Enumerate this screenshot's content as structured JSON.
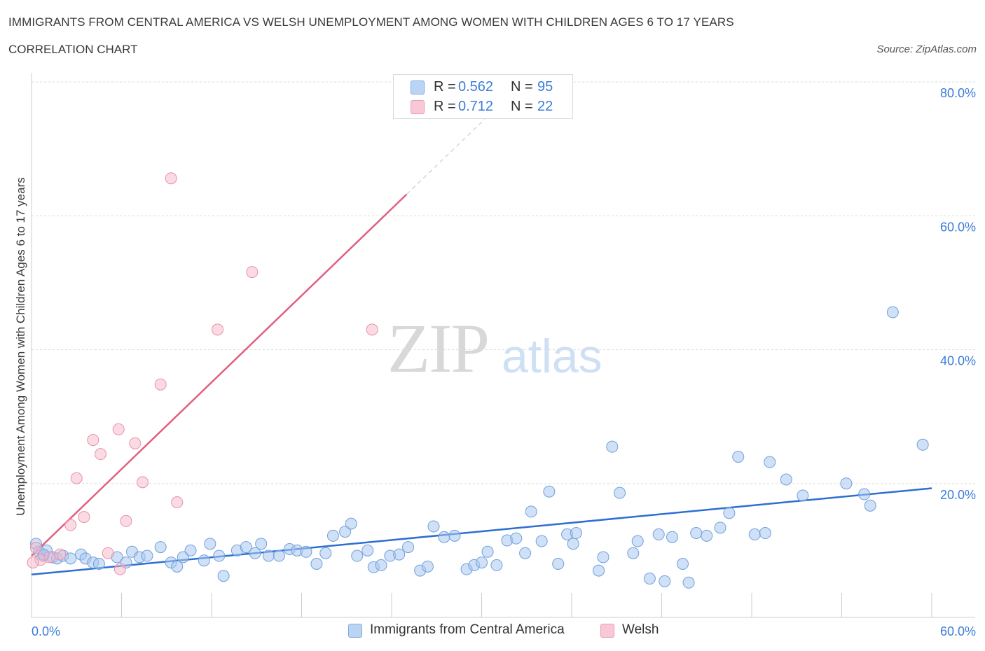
{
  "header": {
    "title": "IMMIGRANTS FROM CENTRAL AMERICA VS WELSH UNEMPLOYMENT AMONG WOMEN WITH CHILDREN AGES 6 TO 17 YEARS",
    "subtitle": "CORRELATION CHART",
    "source": "Source: ZipAtlas.com"
  },
  "watermark": {
    "zip": "ZIP",
    "atlas": "atlas"
  },
  "stats": {
    "row1": {
      "r_label": "R =",
      "r_value": "0.562",
      "n_label": "N =",
      "n_value": "95"
    },
    "row2": {
      "r_label": "R =",
      "r_value": "0.712",
      "n_label": "N =",
      "n_value": "22"
    }
  },
  "legend": {
    "blue": "Immigrants from Central America",
    "pink": "Welsh"
  },
  "colors": {
    "blue_fill": "#a9c8f0",
    "blue_stroke": "#6f9fdc",
    "blue_line": "#2d6fd1",
    "pink_fill": "#f5b8c9",
    "pink_stroke": "#ea8fa8",
    "pink_line": "#e0607e",
    "grid": "#dddddd",
    "tick": "#3b7dd8"
  },
  "chart_data": {
    "type": "scatter",
    "title": "IMMIGRANTS FROM CENTRAL AMERICA VS WELSH UNEMPLOYMENT AMONG WOMEN WITH CHILDREN AGES 6 TO 17 YEARS",
    "xlabel": "",
    "ylabel": "Unemployment Among Women with Children Ages 6 to 17 years",
    "xlim": [
      0,
      60
    ],
    "ylim": [
      0,
      80
    ],
    "x_tick_labels": [
      "0.0%",
      "60.0%"
    ],
    "y_tick_labels": [
      "20.0%",
      "40.0%",
      "60.0%",
      "80.0%"
    ],
    "y_ticks": [
      20,
      40,
      60,
      80
    ],
    "grid": true,
    "legend_position": "bottom",
    "series": [
      {
        "name": "Immigrants from Central America",
        "color": "#a9c8f0",
        "trend": {
          "x": [
            0,
            60
          ],
          "y": [
            6.4,
            19.3
          ]
        },
        "points": [
          [
            0.3,
            11.0
          ],
          [
            0.5,
            9.8
          ],
          [
            0.8,
            9.2
          ],
          [
            1.0,
            10.0
          ],
          [
            1.4,
            9.0
          ],
          [
            1.7,
            8.8
          ],
          [
            2.1,
            9.2
          ],
          [
            2.6,
            8.8
          ],
          [
            3.3,
            9.4
          ],
          [
            3.6,
            8.8
          ],
          [
            4.1,
            8.2
          ],
          [
            4.5,
            8.0
          ],
          [
            5.7,
            9.0
          ],
          [
            6.3,
            8.2
          ],
          [
            6.7,
            9.8
          ],
          [
            7.2,
            9.0
          ],
          [
            7.7,
            9.2
          ],
          [
            8.6,
            10.5
          ],
          [
            9.3,
            8.2
          ],
          [
            9.7,
            7.6
          ],
          [
            10.1,
            9.0
          ],
          [
            10.6,
            10.0
          ],
          [
            11.5,
            8.5
          ],
          [
            11.9,
            11.0
          ],
          [
            12.5,
            9.2
          ],
          [
            12.8,
            6.2
          ],
          [
            13.7,
            10.0
          ],
          [
            14.3,
            10.5
          ],
          [
            14.9,
            9.6
          ],
          [
            15.3,
            11.0
          ],
          [
            15.8,
            9.2
          ],
          [
            16.5,
            9.2
          ],
          [
            17.2,
            10.2
          ],
          [
            17.7,
            10.0
          ],
          [
            18.3,
            9.8
          ],
          [
            19.0,
            8.0
          ],
          [
            19.6,
            9.6
          ],
          [
            20.1,
            12.2
          ],
          [
            20.9,
            12.8
          ],
          [
            21.3,
            14.0
          ],
          [
            21.7,
            9.2
          ],
          [
            22.4,
            10.0
          ],
          [
            22.8,
            7.5
          ],
          [
            23.3,
            7.8
          ],
          [
            23.9,
            9.2
          ],
          [
            24.5,
            9.4
          ],
          [
            25.1,
            10.5
          ],
          [
            25.9,
            7.0
          ],
          [
            26.4,
            7.6
          ],
          [
            26.8,
            13.6
          ],
          [
            27.5,
            12.0
          ],
          [
            28.2,
            12.2
          ],
          [
            29.0,
            7.2
          ],
          [
            29.5,
            7.8
          ],
          [
            30.0,
            8.2
          ],
          [
            30.4,
            9.8
          ],
          [
            31.0,
            7.8
          ],
          [
            31.7,
            11.5
          ],
          [
            32.3,
            11.8
          ],
          [
            32.9,
            9.6
          ],
          [
            33.3,
            15.8
          ],
          [
            34.0,
            11.4
          ],
          [
            34.5,
            18.8
          ],
          [
            35.1,
            8.0
          ],
          [
            35.7,
            12.4
          ],
          [
            36.1,
            11.0
          ],
          [
            36.3,
            12.6
          ],
          [
            37.8,
            7.0
          ],
          [
            38.1,
            9.0
          ],
          [
            38.7,
            25.5
          ],
          [
            39.2,
            18.6
          ],
          [
            40.1,
            9.6
          ],
          [
            40.4,
            11.4
          ],
          [
            41.2,
            5.8
          ],
          [
            41.8,
            12.4
          ],
          [
            42.2,
            5.4
          ],
          [
            42.7,
            12.0
          ],
          [
            43.4,
            8.0
          ],
          [
            43.8,
            5.2
          ],
          [
            44.3,
            12.6
          ],
          [
            45.0,
            12.2
          ],
          [
            45.9,
            13.4
          ],
          [
            46.5,
            15.6
          ],
          [
            47.1,
            24.0
          ],
          [
            48.2,
            12.4
          ],
          [
            48.9,
            12.6
          ],
          [
            49.2,
            23.2
          ],
          [
            50.3,
            20.6
          ],
          [
            51.4,
            18.2
          ],
          [
            54.3,
            20.0
          ],
          [
            55.5,
            18.4
          ],
          [
            55.9,
            16.7
          ],
          [
            57.4,
            45.6
          ],
          [
            59.4,
            25.8
          ],
          [
            0.8,
            9.4
          ]
        ]
      },
      {
        "name": "Welsh",
        "color": "#f5b8c9",
        "trend": {
          "x": [
            0,
            25
          ],
          "y": [
            9.2,
            63.2
          ]
        },
        "points": [
          [
            0.3,
            10.4
          ],
          [
            0.6,
            8.6
          ],
          [
            1.2,
            9.0
          ],
          [
            1.9,
            9.4
          ],
          [
            2.6,
            13.8
          ],
          [
            3.0,
            20.8
          ],
          [
            3.5,
            15.0
          ],
          [
            4.1,
            26.5
          ],
          [
            4.6,
            24.4
          ],
          [
            5.1,
            9.6
          ],
          [
            5.8,
            28.1
          ],
          [
            5.9,
            7.2
          ],
          [
            6.3,
            14.4
          ],
          [
            6.9,
            26.0
          ],
          [
            7.4,
            20.2
          ],
          [
            8.6,
            34.8
          ],
          [
            9.3,
            65.6
          ],
          [
            9.7,
            17.2
          ],
          [
            12.4,
            43.0
          ],
          [
            14.7,
            51.6
          ],
          [
            22.7,
            43.0
          ],
          [
            0.1,
            8.2
          ]
        ]
      }
    ]
  }
}
